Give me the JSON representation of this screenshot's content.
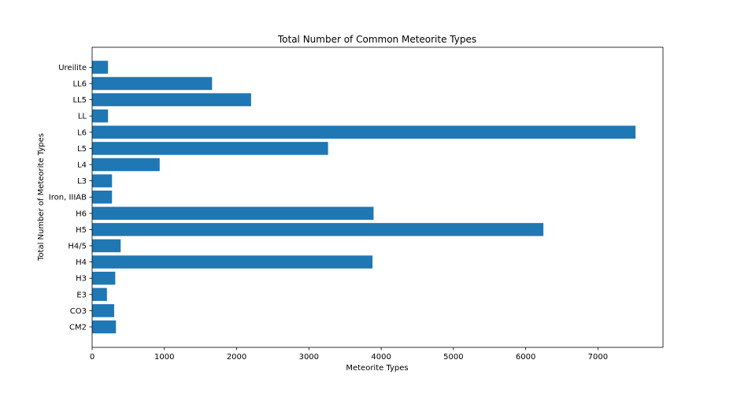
{
  "chart_data": {
    "type": "bar",
    "orientation": "horizontal",
    "title": "Total Number of Common Meteorite Types",
    "xlabel": "Meteorite Types",
    "ylabel": "Total Number of Meteorite Types",
    "categories": [
      "CM2",
      "CO3",
      "E3",
      "H3",
      "H4",
      "H4/5",
      "H5",
      "H6",
      "Iron, IIIAB",
      "L3",
      "L4",
      "L5",
      "L6",
      "LL",
      "LL5",
      "LL6",
      "Ureilite"
    ],
    "values": [
      330,
      305,
      205,
      320,
      3880,
      395,
      6245,
      3895,
      275,
      275,
      935,
      3265,
      7520,
      220,
      2200,
      1660,
      220
    ],
    "xticks": [
      0,
      1000,
      2000,
      3000,
      4000,
      5000,
      6000,
      7000
    ],
    "xlim": [
      0,
      7900
    ],
    "bar_color": "#1f77b4",
    "grid": false
  }
}
